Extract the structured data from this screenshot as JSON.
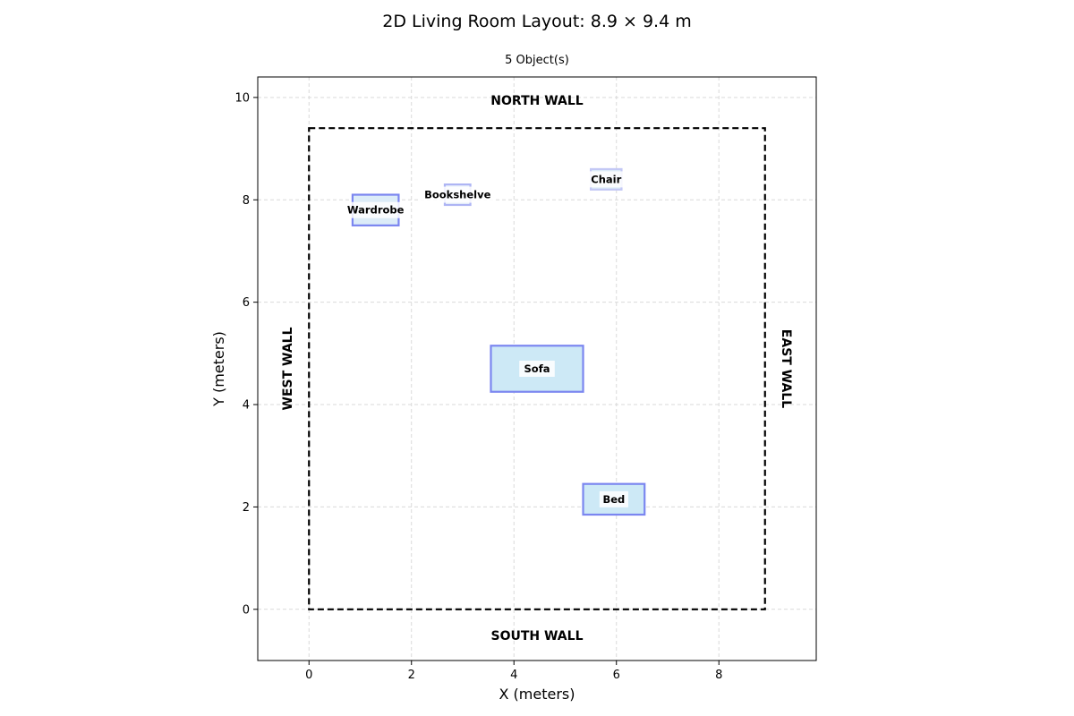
{
  "title": "2D Living Room Layout: 8.9 × 9.4 m",
  "subtitle": "5 Object(s)",
  "axes": {
    "xlabel": "X (meters)",
    "ylabel": "Y (meters)",
    "xlim": [
      -1,
      9.9
    ],
    "ylim": [
      -1,
      10.4
    ],
    "xticks": [
      0,
      2,
      4,
      6,
      8
    ],
    "yticks": [
      0,
      2,
      4,
      6,
      8,
      10
    ],
    "grid": true
  },
  "room": {
    "width": 8.9,
    "depth": 9.4
  },
  "walls": {
    "north": "NORTH WALL",
    "south": "SOUTH WALL",
    "west": "WEST WALL",
    "east": "EAST WALL"
  },
  "objects": [
    {
      "name": "Wardrobe",
      "x": 0.85,
      "y": 7.5,
      "w": 0.9,
      "h": 0.6,
      "fill": "#dcecf8",
      "stroke": "#7b86f0"
    },
    {
      "name": "Bookshelve",
      "x": 2.65,
      "y": 7.9,
      "w": 0.5,
      "h": 0.4,
      "fill": "#eaf2fb",
      "stroke": "#aeb5f4"
    },
    {
      "name": "Chair",
      "x": 5.5,
      "y": 8.2,
      "w": 0.6,
      "h": 0.4,
      "fill": "#dcecf8",
      "stroke": "#c3c8f5"
    },
    {
      "name": "Sofa",
      "x": 3.55,
      "y": 4.25,
      "w": 1.8,
      "h": 0.9,
      "fill": "#cde9f6",
      "stroke": "#7b86f0"
    },
    {
      "name": "Bed",
      "x": 5.35,
      "y": 1.85,
      "w": 1.2,
      "h": 0.6,
      "fill": "#cde9f6",
      "stroke": "#7b86f0"
    }
  ]
}
